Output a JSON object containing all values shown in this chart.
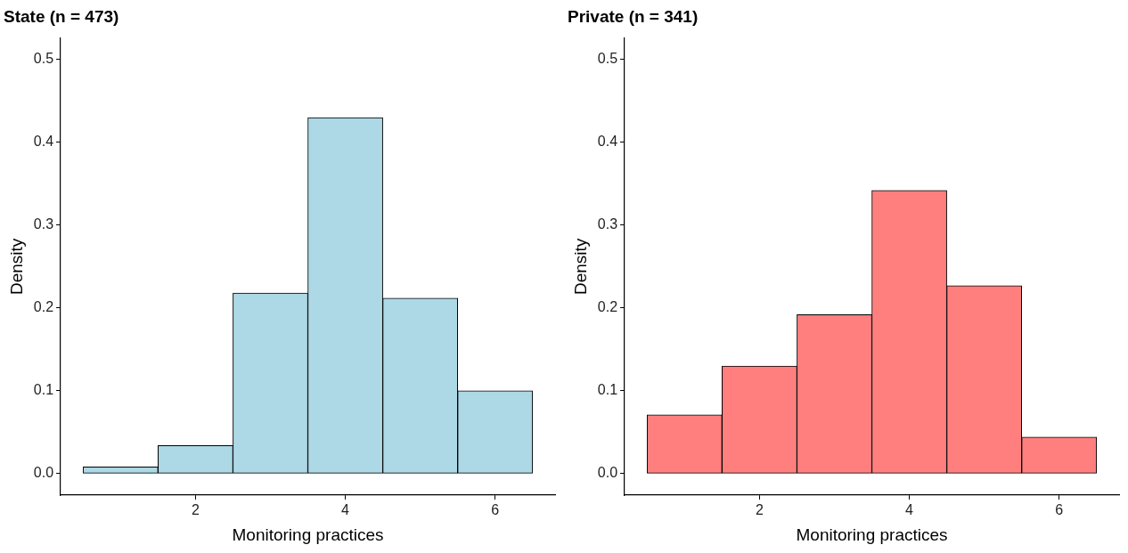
{
  "chart_data": [
    {
      "type": "histogram",
      "title": "State (n = 473)",
      "xlabel": "Monitoring practices",
      "ylabel": "Density",
      "bins": [
        0.5,
        1.5,
        2.5,
        3.5,
        4.5,
        5.5,
        6.5
      ],
      "values": [
        0.008,
        0.034,
        0.218,
        0.43,
        0.212,
        0.1
      ],
      "color": "#add8e6",
      "xlim": [
        0.2,
        6.8
      ],
      "xticks": [
        2,
        4,
        6
      ],
      "ylim": [
        -0.026,
        0.526
      ],
      "yticks": [
        {
          "value": 0,
          "label": "0.0"
        },
        0.1,
        0.2,
        0.3,
        0.4,
        0.5
      ],
      "grid": false,
      "legend": false
    },
    {
      "type": "histogram",
      "title": "Private (n = 341)",
      "xlabel": "Monitoring practices",
      "ylabel": "Density",
      "bins": [
        0.5,
        1.5,
        2.5,
        3.5,
        4.5,
        5.5,
        6.5
      ],
      "values": [
        0.071,
        0.13,
        0.192,
        0.342,
        0.227,
        0.044
      ],
      "color": "#ff7f7f",
      "xlim": [
        0.2,
        6.8
      ],
      "xticks": [
        2,
        4,
        6
      ],
      "ylim": [
        -0.026,
        0.526
      ],
      "yticks": [
        {
          "value": 0,
          "label": "0.0"
        },
        0.1,
        0.2,
        0.3,
        0.4,
        0.5
      ],
      "grid": false,
      "legend": false
    }
  ]
}
